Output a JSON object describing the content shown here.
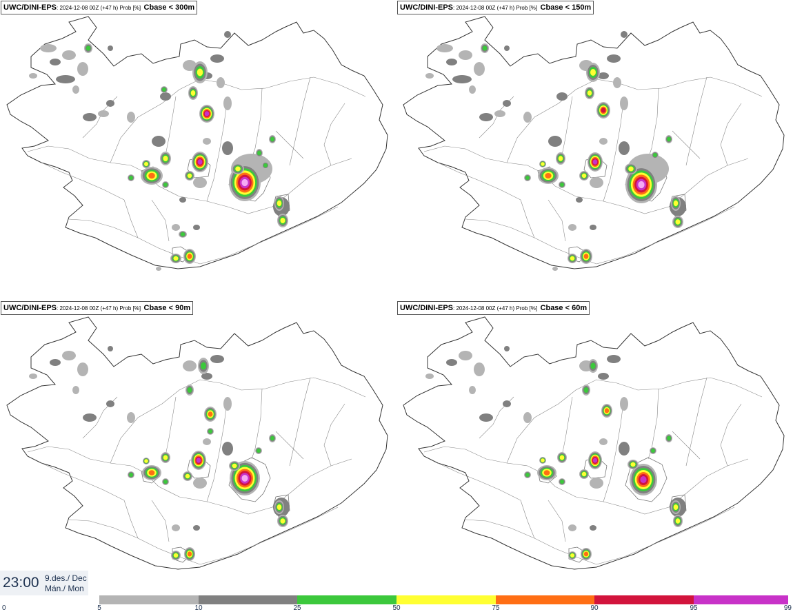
{
  "panels": [
    {
      "model": "UWC/DINI-EPS",
      "meta": ": 2024-12-08 00Z (+47 h) Prob [%]",
      "variable": "Cbase < 300m"
    },
    {
      "model": "UWC/DINI-EPS",
      "meta": ": 2024-12-08 00Z (+47 h) Prob [%]",
      "variable": "Cbase < 150m"
    },
    {
      "model": "UWC/DINI-EPS",
      "meta": ": 2024-12-08 00Z (+47 h) Prob [%]",
      "variable": "Cbase < 90m"
    },
    {
      "model": "UWC/DINI-EPS",
      "meta": ": 2024-12-08 00Z (+47 h) Prob [%]",
      "variable": "Cbase < 60m"
    }
  ],
  "time": {
    "clock": "23:00",
    "day": "9.des./ Dec",
    "weekday": "Mán./ Mon"
  },
  "legend": {
    "ticks": [
      "0",
      "5",
      "10",
      "25",
      "50",
      "75",
      "90",
      "95",
      "99"
    ],
    "colors": [
      "#ffffff",
      "#b4b4b4",
      "#808080",
      "#3cc83c",
      "#ffff32",
      "#ff6e14",
      "#d2143c",
      "#c832c8",
      "#f5aaf5"
    ]
  }
}
